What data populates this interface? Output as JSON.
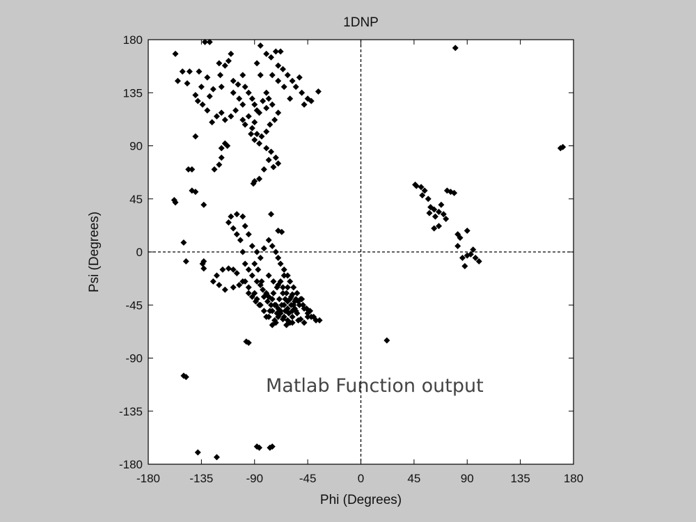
{
  "chart_data": {
    "type": "scatter",
    "title": "1DNP",
    "xlabel": "Phi (Degrees)",
    "ylabel": "Psi (Degrees)",
    "xlim": [
      -180,
      180
    ],
    "ylim": [
      -180,
      180
    ],
    "xticks": [
      -180,
      -135,
      -90,
      -45,
      0,
      45,
      90,
      135,
      180
    ],
    "yticks": [
      -180,
      -135,
      -90,
      -45,
      0,
      45,
      90,
      135,
      180
    ],
    "tick_labels_x": [
      "-180",
      "-135",
      "-90",
      "-45",
      "0",
      "45",
      "90",
      "135",
      "180"
    ],
    "tick_labels_y": [
      "-180",
      "-135",
      "-90",
      "-45",
      "0",
      "45",
      "90",
      "135",
      "180"
    ],
    "grid": false,
    "reference_lines": {
      "x": 0,
      "y": 0,
      "style": "dashed"
    },
    "annotation": "Matlab Function output",
    "marker": {
      "shape": "diamond",
      "color": "#000000"
    },
    "points": [
      [
        -157,
        168
      ],
      [
        -151,
        153
      ],
      [
        -145,
        153
      ],
      [
        -137,
        153
      ],
      [
        -130,
        148
      ],
      [
        -125,
        138
      ],
      [
        -135,
        140
      ],
      [
        -140,
        133
      ],
      [
        -147,
        143
      ],
      [
        -155,
        145
      ],
      [
        -132,
        178
      ],
      [
        -128,
        178
      ],
      [
        -119,
        150
      ],
      [
        -120,
        160
      ],
      [
        -115,
        158
      ],
      [
        -112,
        162
      ],
      [
        -110,
        168
      ],
      [
        -108,
        145
      ],
      [
        -104,
        142
      ],
      [
        -100,
        150
      ],
      [
        -98,
        140
      ],
      [
        -95,
        135
      ],
      [
        -92,
        130
      ],
      [
        -90,
        125
      ],
      [
        -88,
        120
      ],
      [
        -85,
        150
      ],
      [
        -88,
        160
      ],
      [
        -85,
        175
      ],
      [
        -80,
        168
      ],
      [
        -76,
        165
      ],
      [
        -72,
        170
      ],
      [
        -68,
        170
      ],
      [
        -70,
        158
      ],
      [
        -66,
        155
      ],
      [
        -62,
        150
      ],
      [
        -58,
        145
      ],
      [
        -55,
        140
      ],
      [
        -50,
        135
      ],
      [
        -52,
        148
      ],
      [
        -48,
        125
      ],
      [
        -42,
        128
      ],
      [
        -36,
        136
      ],
      [
        -45,
        130
      ],
      [
        -60,
        130
      ],
      [
        -65,
        140
      ],
      [
        -70,
        145
      ],
      [
        -75,
        150
      ],
      [
        -78,
        130
      ],
      [
        -80,
        135
      ],
      [
        -83,
        128
      ],
      [
        -86,
        118
      ],
      [
        -90,
        110
      ],
      [
        -92,
        105
      ],
      [
        -88,
        100
      ],
      [
        -84,
        98
      ],
      [
        -80,
        102
      ],
      [
        -77,
        108
      ],
      [
        -73,
        112
      ],
      [
        -70,
        118
      ],
      [
        -75,
        125
      ],
      [
        -80,
        122
      ],
      [
        -95,
        115
      ],
      [
        -100,
        125
      ],
      [
        -103,
        130
      ],
      [
        -106,
        120
      ],
      [
        -110,
        115
      ],
      [
        -115,
        112
      ],
      [
        -118,
        118
      ],
      [
        -122,
        115
      ],
      [
        -126,
        110
      ],
      [
        -130,
        120
      ],
      [
        -134,
        125
      ],
      [
        -138,
        128
      ],
      [
        -128,
        132
      ],
      [
        -118,
        140
      ],
      [
        -108,
        135
      ],
      [
        -100,
        112
      ],
      [
        -98,
        108
      ],
      [
        -93,
        100
      ],
      [
        -90,
        95
      ],
      [
        -86,
        92
      ],
      [
        -80,
        88
      ],
      [
        -76,
        85
      ],
      [
        -72,
        80
      ],
      [
        -70,
        75
      ],
      [
        -74,
        72
      ],
      [
        -78,
        78
      ],
      [
        -82,
        70
      ],
      [
        -86,
        62
      ],
      [
        -90,
        60
      ],
      [
        -91,
        58
      ],
      [
        -115,
        92
      ],
      [
        -118,
        88
      ],
      [
        -113,
        90
      ],
      [
        -118,
        80
      ],
      [
        -120,
        74
      ],
      [
        -124,
        70
      ],
      [
        -140,
        98
      ],
      [
        -143,
        70
      ],
      [
        -146,
        70
      ],
      [
        -140,
        51
      ],
      [
        -143,
        52
      ],
      [
        -158,
        44
      ],
      [
        -157,
        42
      ],
      [
        -133,
        40
      ],
      [
        -150,
        8
      ],
      [
        -148,
        -8
      ],
      [
        -133,
        -8
      ],
      [
        -133,
        -14
      ],
      [
        -134,
        -10
      ],
      [
        -110,
        30
      ],
      [
        -112,
        25
      ],
      [
        -108,
        20
      ],
      [
        -105,
        15
      ],
      [
        -102,
        10
      ],
      [
        -105,
        32
      ],
      [
        -100,
        30
      ],
      [
        -98,
        22
      ],
      [
        -95,
        15
      ],
      [
        -92,
        5
      ],
      [
        -88,
        0
      ],
      [
        -85,
        -5
      ],
      [
        -82,
        3
      ],
      [
        -78,
        10
      ],
      [
        -75,
        5
      ],
      [
        -72,
        0
      ],
      [
        -70,
        -5
      ],
      [
        -68,
        -10
      ],
      [
        -65,
        -15
      ],
      [
        -62,
        -20
      ],
      [
        -76,
        32
      ],
      [
        -70,
        18
      ],
      [
        -67,
        17
      ],
      [
        -100,
        0
      ],
      [
        -98,
        -10
      ],
      [
        -95,
        -15
      ],
      [
        -92,
        -20
      ],
      [
        -88,
        -25
      ],
      [
        -85,
        -28
      ],
      [
        -83,
        -32
      ],
      [
        -80,
        -35
      ],
      [
        -78,
        -38
      ],
      [
        -75,
        -40
      ],
      [
        -73,
        -45
      ],
      [
        -70,
        -48
      ],
      [
        -68,
        -52
      ],
      [
        -65,
        -55
      ],
      [
        -62,
        -58
      ],
      [
        -60,
        -60
      ],
      [
        -58,
        -55
      ],
      [
        -55,
        -50
      ],
      [
        -52,
        -45
      ],
      [
        -50,
        -40
      ],
      [
        -48,
        -48
      ],
      [
        -45,
        -52
      ],
      [
        -42,
        -55
      ],
      [
        -38,
        -58
      ],
      [
        -72,
        -60
      ],
      [
        -75,
        -62
      ],
      [
        -78,
        -55
      ],
      [
        -82,
        -50
      ],
      [
        -85,
        -45
      ],
      [
        -88,
        -40
      ],
      [
        -90,
        -35
      ],
      [
        -95,
        -30
      ],
      [
        -100,
        -25
      ],
      [
        -105,
        -18
      ],
      [
        -108,
        -15
      ],
      [
        -112,
        -14
      ],
      [
        -117,
        -15
      ],
      [
        -122,
        -20
      ],
      [
        -125,
        -25
      ],
      [
        -120,
        -28
      ],
      [
        -115,
        -32
      ],
      [
        -108,
        -30
      ],
      [
        -103,
        -28
      ],
      [
        -98,
        -25
      ],
      [
        -95,
        -35
      ],
      [
        -92,
        -38
      ],
      [
        -89,
        -42
      ],
      [
        -86,
        -45
      ],
      [
        -80,
        -55
      ],
      [
        -77,
        -50
      ],
      [
        -74,
        -35
      ],
      [
        -71,
        -30
      ],
      [
        -68,
        -25
      ],
      [
        -65,
        -20
      ],
      [
        -60,
        -25
      ],
      [
        -57,
        -30
      ],
      [
        -54,
        -35
      ],
      [
        -51,
        -40
      ],
      [
        -56,
        -42
      ],
      [
        -59,
        -45
      ],
      [
        -62,
        -48
      ],
      [
        -64,
        -40
      ],
      [
        -66,
        -35
      ],
      [
        -69,
        -40
      ],
      [
        -72,
        -45
      ],
      [
        -75,
        -50
      ],
      [
        -67,
        -45
      ],
      [
        -63,
        -35
      ],
      [
        -60,
        -40
      ],
      [
        -57,
        -45
      ],
      [
        -54,
        -52
      ],
      [
        -51,
        -57
      ],
      [
        -48,
        -60
      ],
      [
        -45,
        -55
      ],
      [
        -58,
        -50
      ],
      [
        -61,
        -52
      ],
      [
        -64,
        -50
      ],
      [
        -66,
        -57
      ],
      [
        -70,
        -55
      ],
      [
        -73,
        -58
      ],
      [
        -76,
        -45
      ],
      [
        -79,
        -42
      ],
      [
        -82,
        -38
      ],
      [
        -84,
        -25
      ],
      [
        -87,
        -15
      ],
      [
        -90,
        -10
      ],
      [
        -78,
        -20
      ],
      [
        -74,
        -25
      ],
      [
        -70,
        -28
      ],
      [
        -66,
        -30
      ],
      [
        -62,
        -30
      ],
      [
        -58,
        -36
      ],
      [
        -55,
        -40
      ],
      [
        -53,
        -58
      ],
      [
        -58,
        -60
      ],
      [
        -63,
        -62
      ],
      [
        -68,
        -50
      ],
      [
        -71,
        -52
      ],
      [
        -65,
        -45
      ],
      [
        -62,
        -42
      ],
      [
        -59,
        -38
      ],
      [
        -56,
        -48
      ],
      [
        -53,
        -42
      ],
      [
        -49,
        -45
      ],
      [
        -46,
        -48
      ],
      [
        -43,
        -50
      ],
      [
        -40,
        -55
      ],
      [
        -35,
        -58
      ],
      [
        -95,
        -77
      ],
      [
        -97,
        -76
      ],
      [
        -150,
        -105
      ],
      [
        -148,
        -106
      ],
      [
        -138,
        -170
      ],
      [
        -122,
        -174
      ],
      [
        -88,
        -165
      ],
      [
        -86,
        -166
      ],
      [
        -77,
        -166
      ],
      [
        -75,
        -165
      ],
      [
        22,
        -75
      ],
      [
        80,
        173
      ],
      [
        171,
        89
      ],
      [
        169,
        88
      ],
      [
        46,
        57
      ],
      [
        47,
        56
      ],
      [
        51,
        55
      ],
      [
        52,
        48
      ],
      [
        54,
        52
      ],
      [
        57,
        45
      ],
      [
        59,
        38
      ],
      [
        62,
        36
      ],
      [
        58,
        33
      ],
      [
        63,
        30
      ],
      [
        66,
        34
      ],
      [
        68,
        40
      ],
      [
        70,
        32
      ],
      [
        72,
        28
      ],
      [
        66,
        22
      ],
      [
        62,
        20
      ],
      [
        73,
        52
      ],
      [
        76,
        51
      ],
      [
        79,
        50
      ],
      [
        82,
        15
      ],
      [
        84,
        12
      ],
      [
        82,
        5
      ],
      [
        90,
        18
      ],
      [
        86,
        -5
      ],
      [
        90,
        -3
      ],
      [
        93,
        -2
      ],
      [
        95,
        2
      ],
      [
        97,
        -5
      ],
      [
        100,
        -8
      ],
      [
        88,
        -12
      ]
    ]
  }
}
